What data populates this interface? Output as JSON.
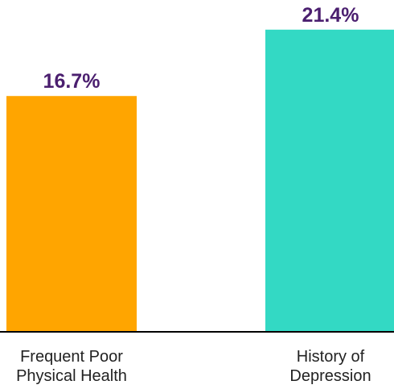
{
  "chart_data": {
    "type": "bar",
    "categories": [
      [
        "Frequent Poor",
        "Physical Health"
      ],
      [
        "History of",
        "Depression"
      ]
    ],
    "values": [
      16.7,
      21.4
    ],
    "data_labels": [
      "16.7%",
      "21.4%"
    ],
    "ylim": [
      0,
      23.5
    ],
    "grid": false,
    "title": "",
    "xlabel": "",
    "ylabel": ""
  },
  "colors": {
    "bars": [
      "#FFA500",
      "#33D9C4"
    ],
    "label": "#4B1F6F",
    "axis": "#000000"
  }
}
